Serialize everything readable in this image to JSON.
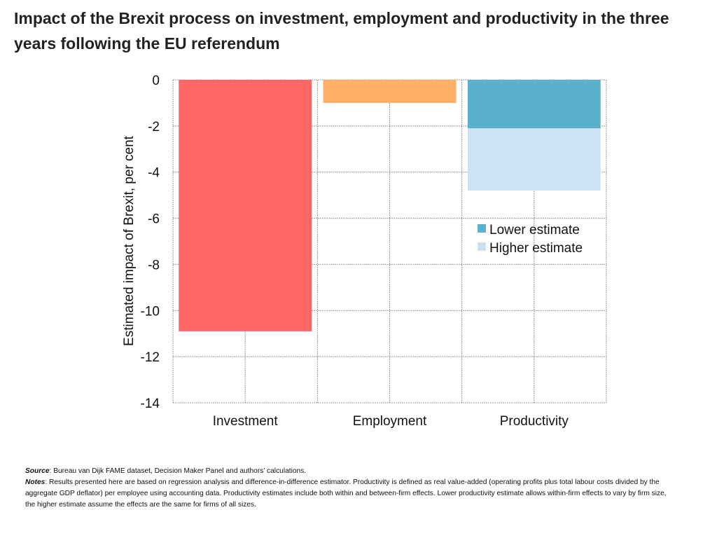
{
  "chart_data": {
    "type": "bar",
    "title": "Impact of the Brexit process on investment, employment and productivity in the three years following the EU referendum",
    "xlabel": "",
    "ylabel": "Estimated impact of Brexit, per cent",
    "ylim": [
      -14,
      0
    ],
    "yticks": [
      0,
      -2,
      -4,
      -6,
      -8,
      -10,
      -12,
      -14
    ],
    "grid": true,
    "categories": [
      "Investment",
      "Employment",
      "Productivity"
    ],
    "values": [
      -10.9,
      -1.0,
      null
    ],
    "colors": [
      "#ff6666",
      "#ffb066",
      null
    ],
    "productivity_range": {
      "series": [
        {
          "name": "Lower estimate",
          "value": -2.1,
          "color": "#5bb0cc"
        },
        {
          "name": "Higher estimate",
          "value": -4.8,
          "color": "#cce3f5"
        }
      ]
    },
    "legend_position": "right-middle"
  },
  "footer": {
    "source_label": "Source",
    "source_text": ": Bureau van Dijk FAME dataset, Decision Maker Panel and authors’ calculations.",
    "notes_label": "Notes",
    "notes_text": ": Results presented here are based on regression analysis and difference-in-difference estimator. Productivity is defined as real value-added (operating profits plus total labour costs divided by the aggregate GDP deflator) per employee using accounting data. Productivity estimates include both within and between-firm effects.  Lower productivity estimate allows within-firm effects to vary by firm size, the higher estimate assume the effects are the same for firms of all sizes."
  }
}
